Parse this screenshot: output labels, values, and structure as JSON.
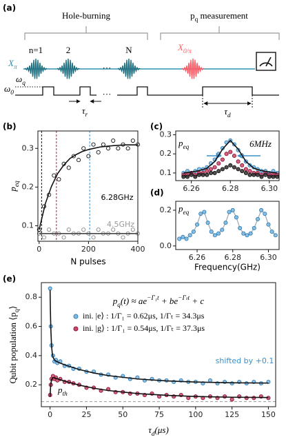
{
  "diagram": {
    "panel_label": "(a)",
    "hole_burning": "Hole-burning",
    "measurement": [
      {
        "text": "p"
      },
      {
        "sub": "q"
      },
      {
        "text": " measurement"
      }
    ],
    "x_pi": [
      {
        "text": "X"
      },
      {
        "sub": "π"
      }
    ],
    "pulse_labels": [
      "n=1",
      "2",
      "N"
    ],
    "ellipsis": "···",
    "x_0pi": [
      {
        "text": "X"
      },
      {
        "sub": "0/π"
      }
    ],
    "omega_0": [
      {
        "text": "ω"
      },
      {
        "sub": "0"
      }
    ],
    "omega_q": [
      {
        "text": "ω"
      },
      {
        "sub": "q"
      }
    ],
    "tau_r": [
      {
        "text": "τ"
      },
      {
        "sub": "r"
      }
    ],
    "tau_d": [
      {
        "text": "τ"
      },
      {
        "sub": "d"
      }
    ]
  },
  "chart_data": [
    {
      "type": "scatter",
      "panel_label": "(b)",
      "ylabel": [
        {
          "text": "p"
        },
        {
          "sub": "eq"
        }
      ],
      "xlabel": "N pulses",
      "annotations": [
        "6.28GHz",
        "4.5GHz"
      ],
      "xlim": [
        -5,
        400
      ],
      "xticks": [
        0,
        200,
        400
      ],
      "ylim": [
        0.06,
        0.345
      ],
      "yticks": [
        0.1,
        0.2,
        0.3
      ],
      "vlines": [
        {
          "x": 10,
          "color": "#111111"
        },
        {
          "x": 70,
          "color": "#b0213e"
        },
        {
          "x": 205,
          "color": "#3a8fc8"
        }
      ],
      "series": [
        {
          "mode": "markers",
          "color": "#888888",
          "fill": "none",
          "x": [
            0,
            20,
            40,
            60,
            80,
            100,
            120,
            140,
            160,
            180,
            200,
            220,
            240,
            260,
            280,
            300,
            320,
            340,
            360,
            380,
            400
          ],
          "values": [
            0.08,
            0.07,
            0.09,
            0.08,
            0.08,
            0.07,
            0.09,
            0.08,
            0.08,
            0.09,
            0.08,
            0.07,
            0.09,
            0.08,
            0.08,
            0.09,
            0.08,
            0.07,
            0.08,
            0.09,
            0.08
          ]
        },
        {
          "mode": "line",
          "color": "#444444",
          "x": [
            0,
            400
          ],
          "values": [
            0.08,
            0.08
          ]
        },
        {
          "mode": "markers",
          "color": "#111111",
          "fill": "none",
          "x": [
            0,
            20,
            40,
            60,
            80,
            100,
            120,
            140,
            160,
            180,
            200,
            220,
            240,
            260,
            280,
            300,
            320,
            340,
            360,
            380,
            400
          ],
          "values": [
            0.09,
            0.15,
            0.18,
            0.23,
            0.22,
            0.26,
            0.25,
            0.28,
            0.27,
            0.3,
            0.28,
            0.31,
            0.29,
            0.31,
            0.3,
            0.32,
            0.3,
            0.31,
            0.3,
            0.32,
            0.31
          ]
        },
        {
          "mode": "line",
          "color": "#111111",
          "x": [
            0,
            25,
            50,
            75,
            100,
            125,
            150,
            175,
            200,
            250,
            300,
            350,
            400
          ],
          "values": [
            0.09,
            0.157,
            0.202,
            0.235,
            0.257,
            0.274,
            0.284,
            0.292,
            0.297,
            0.304,
            0.307,
            0.309,
            0.309
          ]
        }
      ]
    },
    {
      "type": "scatter",
      "panel_label": "(c)",
      "annotations": [
        [
          {
            "text": "p"
          },
          {
            "sub": "eq"
          }
        ],
        "6MHz"
      ],
      "xlim": [
        6.252,
        6.305
      ],
      "xticks": [
        6.26,
        6.28,
        {
          "value": 6.3,
          "label": "6.30"
        }
      ],
      "ylim": [
        0.06,
        0.32
      ],
      "yticks": [
        0.1,
        0.2,
        0.3
      ],
      "series": [
        {
          "mode": "markers",
          "color": "#2f7fb8",
          "fill": "#7fb8e0",
          "x": [
            6.256,
            6.258,
            6.26,
            6.262,
            6.264,
            6.266,
            6.268,
            6.27,
            6.272,
            6.274,
            6.276,
            6.278,
            6.28,
            6.282,
            6.284,
            6.286,
            6.288,
            6.29,
            6.292,
            6.294,
            6.296,
            6.298,
            6.3,
            6.302,
            6.304
          ],
          "values": [
            0.1,
            0.11,
            0.1,
            0.11,
            0.12,
            0.12,
            0.13,
            0.15,
            0.17,
            0.2,
            0.23,
            0.26,
            0.27,
            0.25,
            0.22,
            0.19,
            0.16,
            0.14,
            0.13,
            0.12,
            0.11,
            0.11,
            0.1,
            0.11,
            0.1
          ]
        },
        {
          "mode": "markers",
          "color": "#8e1537",
          "fill": "#c94a6b",
          "x": [
            6.256,
            6.258,
            6.26,
            6.262,
            6.264,
            6.266,
            6.268,
            6.27,
            6.272,
            6.274,
            6.276,
            6.278,
            6.28,
            6.282,
            6.284,
            6.286,
            6.288,
            6.29,
            6.292,
            6.294,
            6.296,
            6.298,
            6.3,
            6.302,
            6.304
          ],
          "values": [
            0.09,
            0.09,
            0.1,
            0.09,
            0.1,
            0.1,
            0.11,
            0.12,
            0.13,
            0.15,
            0.17,
            0.2,
            0.21,
            0.19,
            0.16,
            0.14,
            0.12,
            0.11,
            0.1,
            0.1,
            0.09,
            0.1,
            0.09,
            0.09,
            0.09
          ]
        },
        {
          "mode": "markers",
          "color": "#111111",
          "fill": "#333333",
          "x": [
            6.256,
            6.258,
            6.26,
            6.262,
            6.264,
            6.266,
            6.268,
            6.27,
            6.272,
            6.274,
            6.276,
            6.278,
            6.28,
            6.282,
            6.284,
            6.286,
            6.288,
            6.29,
            6.292,
            6.294,
            6.296,
            6.298,
            6.3,
            6.302,
            6.304
          ],
          "values": [
            0.08,
            0.08,
            0.09,
            0.08,
            0.09,
            0.09,
            0.09,
            0.1,
            0.1,
            0.11,
            0.12,
            0.13,
            0.14,
            0.13,
            0.12,
            0.11,
            0.1,
            0.09,
            0.09,
            0.09,
            0.08,
            0.09,
            0.08,
            0.08,
            0.08
          ]
        },
        {
          "mode": "line",
          "color": "#111111",
          "x": [
            6.256,
            6.26,
            6.264,
            6.268,
            6.272,
            6.276,
            6.28,
            6.284,
            6.288,
            6.292,
            6.296,
            6.3,
            6.304
          ],
          "values": [
            0.1,
            0.105,
            0.112,
            0.125,
            0.16,
            0.225,
            0.27,
            0.225,
            0.16,
            0.125,
            0.112,
            0.105,
            0.1
          ]
        }
      ]
    },
    {
      "type": "scatter",
      "panel_label": "(d)",
      "annotations": [
        [
          {
            "text": "p"
          },
          {
            "sub": "eq"
          }
        ]
      ],
      "xlabel": "Frequency(GHz)",
      "xlim": [
        6.248,
        6.306
      ],
      "xticks": [
        6.26,
        6.28,
        {
          "value": 6.3,
          "label": "6.30"
        }
      ],
      "ylim": [
        -0.02,
        0.25
      ],
      "yticks": [
        {
          "value": 0,
          "label": "0.0"
        },
        0.2
      ],
      "series": [
        {
          "mode": "markers",
          "color": "#2f7fb8",
          "fill": "#7fb8e0",
          "line_color": "#9aa8b4",
          "x": [
            6.25,
            6.252,
            6.254,
            6.256,
            6.258,
            6.26,
            6.262,
            6.264,
            6.266,
            6.268,
            6.27,
            6.272,
            6.274,
            6.276,
            6.278,
            6.28,
            6.282,
            6.284,
            6.286,
            6.288,
            6.29,
            6.292,
            6.294,
            6.296,
            6.298,
            6.3,
            6.302,
            6.304
          ],
          "values": [
            0.04,
            0.05,
            0.04,
            0.06,
            0.08,
            0.12,
            0.18,
            0.19,
            0.13,
            0.08,
            0.06,
            0.07,
            0.09,
            0.13,
            0.19,
            0.2,
            0.16,
            0.1,
            0.07,
            0.06,
            0.07,
            0.1,
            0.15,
            0.2,
            0.18,
            0.12,
            0.08,
            0.06
          ]
        }
      ]
    },
    {
      "type": "scatter",
      "panel_label": "(e)",
      "ylabel": [
        {
          "text": "Qubit population ⟨"
        },
        {
          "text": "p"
        },
        {
          "sub": "q"
        },
        {
          "text": "⟩"
        }
      ],
      "xlabel": [
        {
          "text": "τ"
        },
        {
          "sub": "d"
        },
        {
          "text": "(μs)"
        }
      ],
      "formula": [
        {
          "text": "p"
        },
        {
          "sub": "q"
        },
        {
          "text": "(t) ≈ ae"
        },
        {
          "sup": "−Γ₁t"
        },
        {
          "text": " + be"
        },
        {
          "sup": "−Γₜt"
        },
        {
          "text": " + c"
        }
      ],
      "annotations": [
        "shifted by +0.1"
      ],
      "xlim": [
        -6,
        155
      ],
      "xticks": [
        0,
        25,
        50,
        75,
        100,
        125,
        150
      ],
      "ylim": [
        0.05,
        0.9
      ],
      "yticks": [
        0.2,
        0.4,
        0.6,
        0.8
      ],
      "hlines": [
        {
          "y": 0.085,
          "color": "#999999",
          "label": [
            {
              "text": "p"
            },
            {
              "sub": "th"
            }
          ]
        }
      ],
      "series": [
        {
          "mode": "markers",
          "name": "ini. |e⟩ : 1/Γ₁ = 0.62μs, 1/Γₜ = 34.3μs",
          "color": "#2f7fb8",
          "fill": "#7fb8e0",
          "x": [
            0,
            0.5,
            1,
            2,
            3,
            4,
            5,
            7,
            10,
            13,
            16,
            20,
            25,
            30,
            35,
            40,
            45,
            50,
            55,
            60,
            65,
            70,
            75,
            80,
            85,
            90,
            95,
            100,
            105,
            110,
            115,
            120,
            125,
            130,
            135,
            140,
            145,
            150
          ],
          "values": [
            0.86,
            0.6,
            0.47,
            0.4,
            0.36,
            0.37,
            0.35,
            0.36,
            0.33,
            0.33,
            0.31,
            0.31,
            0.29,
            0.29,
            0.27,
            0.27,
            0.25,
            0.26,
            0.24,
            0.25,
            0.23,
            0.24,
            0.23,
            0.23,
            0.22,
            0.23,
            0.22,
            0.22,
            0.21,
            0.23,
            0.21,
            0.22,
            0.21,
            0.22,
            0.21,
            0.22,
            0.21,
            0.22
          ]
        },
        {
          "mode": "markers",
          "name": "ini. |g⟩ : 1/Γ₁ = 0.54μs, 1/Γₜ = 37.3μs",
          "color": "#8e1537",
          "fill": "#c94a6b",
          "x": [
            0,
            0.5,
            1,
            2,
            3,
            4,
            5,
            7,
            10,
            13,
            16,
            20,
            25,
            30,
            35,
            40,
            45,
            50,
            55,
            60,
            65,
            70,
            75,
            80,
            85,
            90,
            95,
            100,
            105,
            110,
            115,
            120,
            125,
            130,
            135,
            140,
            145,
            150
          ],
          "values": [
            0.13,
            0.2,
            0.24,
            0.26,
            0.24,
            0.25,
            0.23,
            0.24,
            0.22,
            0.22,
            0.21,
            0.2,
            0.18,
            0.18,
            0.16,
            0.17,
            0.15,
            0.15,
            0.14,
            0.14,
            0.13,
            0.14,
            0.12,
            0.13,
            0.12,
            0.13,
            0.11,
            0.12,
            0.11,
            0.12,
            0.11,
            0.12,
            0.1,
            0.12,
            0.11,
            0.11,
            0.12,
            0.11
          ]
        },
        {
          "mode": "line",
          "color": "#111111",
          "x": [
            0,
            0.25,
            0.5,
            1,
            1.5,
            2,
            3,
            5,
            10,
            20,
            30,
            40,
            60,
            80,
            100,
            125,
            150
          ],
          "values": [
            0.85,
            0.693,
            0.587,
            0.469,
            0.415,
            0.389,
            0.37,
            0.357,
            0.337,
            0.305,
            0.281,
            0.263,
            0.24,
            0.227,
            0.219,
            0.214,
            0.212
          ]
        },
        {
          "mode": "line",
          "color": "#111111",
          "x": [
            0,
            0.25,
            0.5,
            1,
            1.5,
            2,
            3,
            5,
            10,
            20,
            30,
            40,
            60,
            80,
            100,
            125,
            150
          ],
          "values": [
            0.12,
            0.171,
            0.203,
            0.234,
            0.245,
            0.249,
            0.248,
            0.241,
            0.225,
            0.198,
            0.177,
            0.161,
            0.14,
            0.128,
            0.12,
            0.115,
            0.113
          ]
        }
      ]
    }
  ]
}
